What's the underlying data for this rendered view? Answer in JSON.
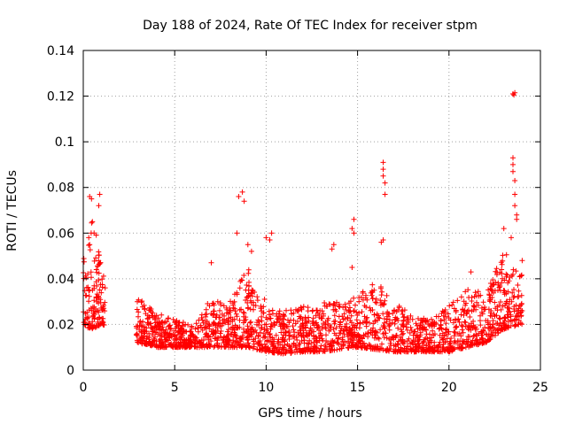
{
  "chart_data": {
    "type": "scatter",
    "title": "Day 188 of 2024, Rate Of TEC Index for receiver stpm",
    "xlabel": "GPS time / hours",
    "ylabel": "ROTI / TECUs",
    "xlim": [
      0,
      25
    ],
    "ylim": [
      0,
      0.14
    ],
    "xticks": [
      "0",
      "5",
      "10",
      "15",
      "20",
      "25"
    ],
    "yticks": [
      "0",
      "0.02",
      "0.04",
      "0.06",
      "0.08",
      "0.1",
      "0.12",
      "0.14"
    ],
    "grid": true,
    "marker": "+",
    "series_color": "#ff0000",
    "series": [
      {
        "name": "ROTI",
        "envelope": [
          {
            "x": 0.0,
            "lo": 0.018,
            "hi": 0.05
          },
          {
            "x": 0.5,
            "lo": 0.018,
            "hi": 0.07
          },
          {
            "x": 1.0,
            "lo": 0.02,
            "hi": 0.045
          },
          {
            "x": 3.0,
            "lo": 0.012,
            "hi": 0.032
          },
          {
            "x": 4.0,
            "lo": 0.01,
            "hi": 0.025
          },
          {
            "x": 5.0,
            "lo": 0.01,
            "hi": 0.022
          },
          {
            "x": 6.0,
            "lo": 0.01,
            "hi": 0.02
          },
          {
            "x": 7.0,
            "lo": 0.01,
            "hi": 0.032
          },
          {
            "x": 8.0,
            "lo": 0.01,
            "hi": 0.03
          },
          {
            "x": 9.0,
            "lo": 0.01,
            "hi": 0.045
          },
          {
            "x": 10.0,
            "lo": 0.008,
            "hi": 0.03
          },
          {
            "x": 11.0,
            "lo": 0.007,
            "hi": 0.026
          },
          {
            "x": 12.0,
            "lo": 0.008,
            "hi": 0.028
          },
          {
            "x": 13.0,
            "lo": 0.008,
            "hi": 0.03
          },
          {
            "x": 14.0,
            "lo": 0.009,
            "hi": 0.03
          },
          {
            "x": 15.0,
            "lo": 0.01,
            "hi": 0.032
          },
          {
            "x": 16.0,
            "lo": 0.009,
            "hi": 0.04
          },
          {
            "x": 17.0,
            "lo": 0.008,
            "hi": 0.03
          },
          {
            "x": 18.0,
            "lo": 0.008,
            "hi": 0.024
          },
          {
            "x": 19.0,
            "lo": 0.008,
            "hi": 0.022
          },
          {
            "x": 20.0,
            "lo": 0.008,
            "hi": 0.028
          },
          {
            "x": 21.0,
            "lo": 0.01,
            "hi": 0.036
          },
          {
            "x": 22.0,
            "lo": 0.012,
            "hi": 0.034
          },
          {
            "x": 23.0,
            "lo": 0.018,
            "hi": 0.052
          },
          {
            "x": 24.0,
            "lo": 0.02,
            "hi": 0.042
          }
        ],
        "outliers": [
          {
            "x": 0.35,
            "y": 0.076
          },
          {
            "x": 0.45,
            "y": 0.075
          },
          {
            "x": 0.9,
            "y": 0.077
          },
          {
            "x": 0.85,
            "y": 0.072
          },
          {
            "x": 0.5,
            "y": 0.065
          },
          {
            "x": 0.3,
            "y": 0.058
          },
          {
            "x": 8.5,
            "y": 0.076
          },
          {
            "x": 8.7,
            "y": 0.078
          },
          {
            "x": 8.8,
            "y": 0.074
          },
          {
            "x": 8.4,
            "y": 0.06
          },
          {
            "x": 9.2,
            "y": 0.052
          },
          {
            "x": 9.0,
            "y": 0.055
          },
          {
            "x": 10.0,
            "y": 0.058
          },
          {
            "x": 10.3,
            "y": 0.06
          },
          {
            "x": 10.2,
            "y": 0.057
          },
          {
            "x": 7.0,
            "y": 0.047
          },
          {
            "x": 13.7,
            "y": 0.055
          },
          {
            "x": 13.6,
            "y": 0.053
          },
          {
            "x": 14.8,
            "y": 0.066
          },
          {
            "x": 14.8,
            "y": 0.06
          },
          {
            "x": 14.7,
            "y": 0.062
          },
          {
            "x": 14.7,
            "y": 0.045
          },
          {
            "x": 16.4,
            "y": 0.091
          },
          {
            "x": 16.4,
            "y": 0.088
          },
          {
            "x": 16.4,
            "y": 0.085
          },
          {
            "x": 16.5,
            "y": 0.082
          },
          {
            "x": 16.5,
            "y": 0.077
          },
          {
            "x": 16.3,
            "y": 0.056
          },
          {
            "x": 16.4,
            "y": 0.057
          },
          {
            "x": 21.2,
            "y": 0.043
          },
          {
            "x": 23.0,
            "y": 0.062
          },
          {
            "x": 23.5,
            "y": 0.093
          },
          {
            "x": 23.5,
            "y": 0.09
          },
          {
            "x": 23.5,
            "y": 0.087
          },
          {
            "x": 23.6,
            "y": 0.083
          },
          {
            "x": 23.6,
            "y": 0.077
          },
          {
            "x": 23.6,
            "y": 0.072
          },
          {
            "x": 23.7,
            "y": 0.068
          },
          {
            "x": 23.7,
            "y": 0.066
          },
          {
            "x": 23.4,
            "y": 0.058
          },
          {
            "x": 23.5,
            "y": 0.121
          },
          {
            "x": 23.6,
            "y": 0.1215
          },
          {
            "x": 23.55,
            "y": 0.1205
          },
          {
            "x": 24.0,
            "y": 0.048
          },
          {
            "x": 24.0,
            "y": 0.026
          }
        ],
        "gaps": [
          [
            1.2,
            2.9
          ]
        ],
        "approx_points": 2400
      }
    ]
  }
}
